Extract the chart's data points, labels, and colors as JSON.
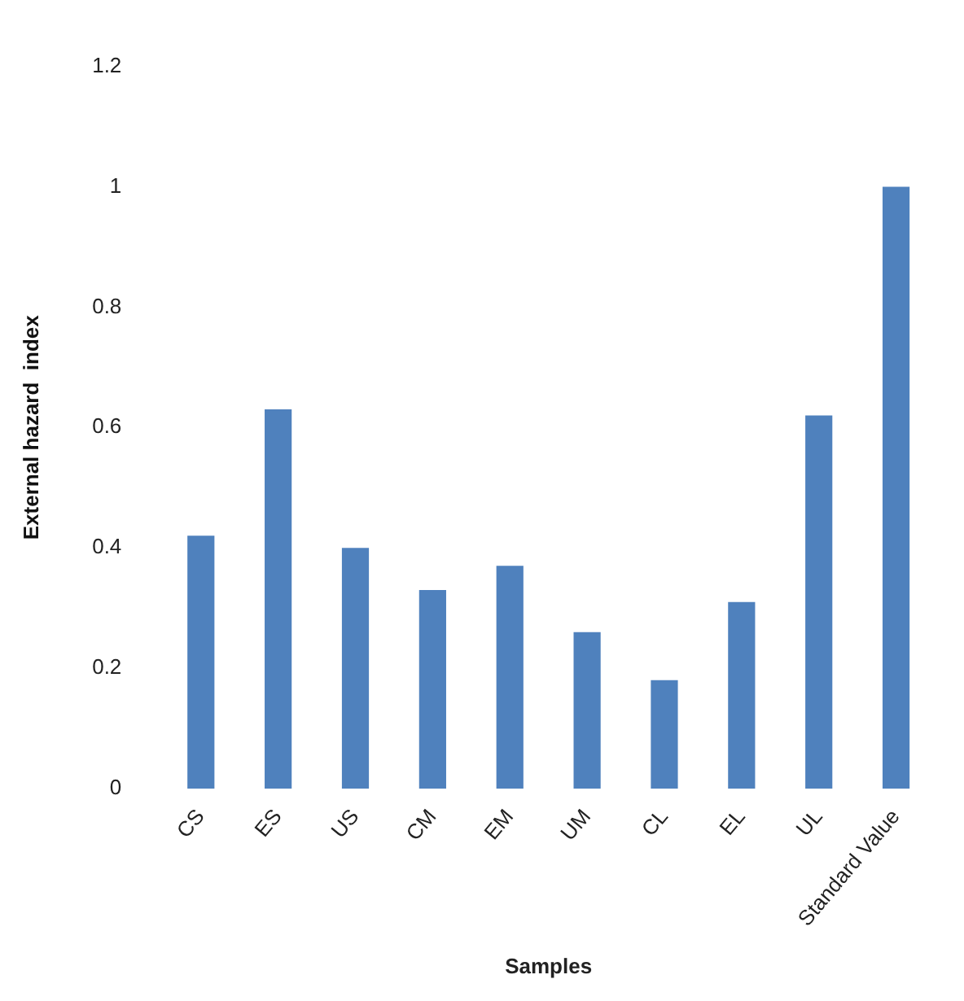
{
  "chart_data": {
    "type": "bar",
    "xlabel": "Samples",
    "ylabel": "External hazard  index",
    "categories": [
      "CS",
      "ES",
      "US",
      "CM",
      "EM",
      "UM",
      "CL",
      "EL",
      "UL",
      "Standard Value"
    ],
    "values": [
      0.42,
      0.63,
      0.4,
      0.33,
      0.37,
      0.26,
      0.18,
      0.31,
      0.62,
      1.0
    ],
    "color": "#4f81bd",
    "ylim": [
      0,
      1.2
    ],
    "yticks": [
      0,
      0.2,
      0.4,
      0.6,
      0.8,
      1,
      1.2
    ],
    "grid": false,
    "legend": false
  }
}
